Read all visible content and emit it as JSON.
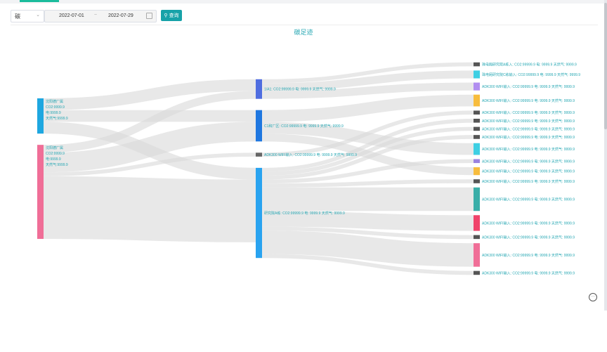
{
  "filters": {
    "type_value": "碳",
    "start_date": "2022-07-01",
    "date_separator": "~",
    "end_date": "2022-07-29",
    "query_label": "查询"
  },
  "colors": {
    "accent": "#17a2a8",
    "link": "#d9d9d9",
    "label": "#26a7b3"
  },
  "chart_data": {
    "type": "sankey",
    "title": "碳足迹",
    "nodes": [
      {
        "id": "s1",
        "col": 0,
        "lines": [
          "沈阳德厂属",
          "CO2:9999.9",
          "电:9999.9",
          "天然气:9999.9"
        ],
        "color": "#1ea7e0"
      },
      {
        "id": "s2",
        "col": 0,
        "lines": [
          "沈阳德厂属",
          "CO2:9999.9",
          "电:9999.9",
          "天然气:9999.9"
        ],
        "color": "#f06e97"
      },
      {
        "id": "m1",
        "col": 1,
        "lines": [
          "1/A1: CO2:99999.9 电: 9999.9 天然气: 9999.9"
        ],
        "color": "#4f6de0"
      },
      {
        "id": "m2",
        "col": 1,
        "lines": [
          "C1和厂区: CO2:99999.9 电: 9999.9 天然气: 9999.9"
        ],
        "color": "#1f77e0"
      },
      {
        "id": "m3",
        "col": 1,
        "lines": [
          "ADK300 WIFI输入: CO2:99999.9 电: 9999.9 天然气: 9999.9"
        ],
        "color": "#666666"
      },
      {
        "id": "m4",
        "col": 1,
        "lines": [
          "研究院A栋: CO2:99999.9 电: 9999.9 天然气: 9999.9"
        ],
        "color": "#29a3f0"
      },
      {
        "id": "t1",
        "col": 2,
        "lines": [
          "珠电厢研究院A栋入: CO2:99999.9 电: 9999.9 天然气: 9999.9"
        ],
        "color": "#555555"
      },
      {
        "id": "t2",
        "col": 2,
        "lines": [
          "珠电厢研究院C栋输入: CO2:99999.9 电: 9999.9 天然气: 9999.9"
        ],
        "color": "#3ecfe3"
      },
      {
        "id": "t3",
        "col": 2,
        "lines": [
          "ADK300 WIFI输入: CO2:99999.9 电: 9999.9 天然气: 9999.9"
        ],
        "color": "#b18ef0"
      },
      {
        "id": "t4",
        "col": 2,
        "lines": [
          "ADK300 WIFI输入: CO2:99999.9 电: 9999.9 天然气: 9999.9"
        ],
        "color": "#f7bc3d"
      },
      {
        "id": "t5",
        "col": 2,
        "lines": [
          "ADK300 WIFI输入: CO2:99999.9 电: 9999.9 天然气: 9999.9"
        ],
        "color": "#555555"
      },
      {
        "id": "t6",
        "col": 2,
        "lines": [
          "ADK300 WIFI输入: CO2:99999.9 电: 9999.9 天然气: 9999.9"
        ],
        "color": "#555555"
      },
      {
        "id": "t7",
        "col": 2,
        "lines": [
          "ADK300 WIFI输入: CO2:99999.9 电: 9999.9 天然气: 9999.9"
        ],
        "color": "#555555"
      },
      {
        "id": "t8",
        "col": 2,
        "lines": [
          "ADK300 WIFI输入: CO2:99999.9 电: 9999.9 天然气: 9999.9"
        ],
        "color": "#555555"
      },
      {
        "id": "t9",
        "col": 2,
        "lines": [
          "ADK300 WIFI输入: CO2:99999.9 电: 9999.9 天然气: 9999.9"
        ],
        "color": "#3ecfe3"
      },
      {
        "id": "t10",
        "col": 2,
        "lines": [
          "ADK300 WIFI输入: CO2:99999.9 电: 9999.9 天然气: 9999.9"
        ],
        "color": "#9b83e0"
      },
      {
        "id": "t11",
        "col": 2,
        "lines": [
          "ADK300 WIFI输入: CO2:99999.9 电: 9999.9 天然气: 9999.9"
        ],
        "color": "#f7bc3d"
      },
      {
        "id": "t12",
        "col": 2,
        "lines": [
          "ADK300 WIFI输入: CO2:99999.9 电: 9999.9 天然气: 9999.9"
        ],
        "color": "#555555"
      },
      {
        "id": "t13",
        "col": 2,
        "lines": [
          "ADK300 WIFI输入: CO2:99999.9 电: 9999.9 天然气: 9999.9"
        ],
        "color": "#3aaea8"
      },
      {
        "id": "t14",
        "col": 2,
        "lines": [
          "ADK300 WIFI输入: CO2:99999.9 电: 9999.9 天然气: 9999.9"
        ],
        "color": "#f0436a"
      },
      {
        "id": "t15",
        "col": 2,
        "lines": [
          "ADK300 WIFI输入: CO2:99999.9 电: 9999.9 天然气: 9999.9"
        ],
        "color": "#555555"
      },
      {
        "id": "t16",
        "col": 2,
        "lines": [
          "ADK300 WIFI输入: CO2:99999.9 电: 9999.9 天然气: 9999.9"
        ],
        "color": "#f06e97"
      },
      {
        "id": "t17",
        "col": 2,
        "lines": [
          "ADK300 WIFI输入: CO2:99999.9 电: 9999.9 天然气: 9999.9"
        ],
        "color": "#555555"
      }
    ],
    "links": [
      {
        "source": "s1",
        "target": "m1",
        "value": 3
      },
      {
        "source": "s1",
        "target": "m2",
        "value": 3
      },
      {
        "source": "s1",
        "target": "m4",
        "value": 3
      },
      {
        "source": "s2",
        "target": "m1",
        "value": 2
      },
      {
        "source": "s2",
        "target": "m2",
        "value": 5
      },
      {
        "source": "s2",
        "target": "m3",
        "value": 1
      },
      {
        "source": "s2",
        "target": "m4",
        "value": 16
      },
      {
        "source": "m1",
        "target": "t1",
        "value": 1
      },
      {
        "source": "m1",
        "target": "t2",
        "value": 2
      },
      {
        "source": "m1",
        "target": "t3",
        "value": 2
      },
      {
        "source": "m2",
        "target": "t4",
        "value": 3
      },
      {
        "source": "m2",
        "target": "t9",
        "value": 3
      },
      {
        "source": "m2",
        "target": "t11",
        "value": 2
      },
      {
        "source": "m3",
        "target": "t5",
        "value": 1
      },
      {
        "source": "m4",
        "target": "t6",
        "value": 1
      },
      {
        "source": "m4",
        "target": "t7",
        "value": 1
      },
      {
        "source": "m4",
        "target": "t8",
        "value": 1
      },
      {
        "source": "m4",
        "target": "t10",
        "value": 1
      },
      {
        "source": "m4",
        "target": "t12",
        "value": 1
      },
      {
        "source": "m4",
        "target": "t13",
        "value": 6
      },
      {
        "source": "m4",
        "target": "t14",
        "value": 4
      },
      {
        "source": "m4",
        "target": "t15",
        "value": 1
      },
      {
        "source": "m4",
        "target": "t16",
        "value": 6
      },
      {
        "source": "m4",
        "target": "t17",
        "value": 1
      }
    ]
  }
}
